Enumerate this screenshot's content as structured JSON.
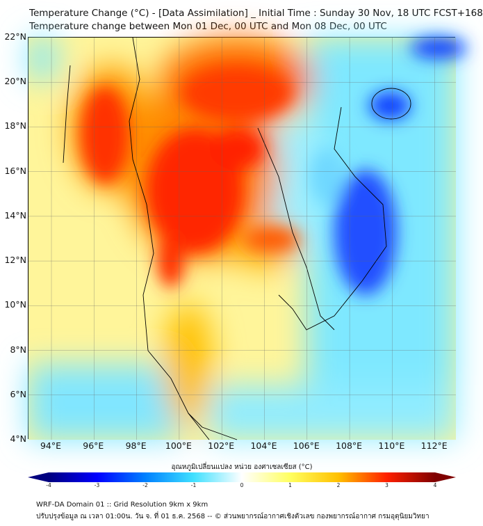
{
  "title": {
    "line1": "Temperature Change (°C) - [Data Assimilation] _ Initial Time : Sunday 30 Nov, 18 UTC FCST+168",
    "line2": "Temperature change between Mon 01 Dec, 00 UTC and Mon 08 Dec, 00 UTC"
  },
  "map": {
    "lat_labels": [
      "22°N",
      "20°N",
      "18°N",
      "16°N",
      "14°N",
      "12°N",
      "10°N",
      "8°N",
      "6°N",
      "4°N"
    ],
    "lon_labels": [
      "94°E",
      "96°E",
      "98°E",
      "100°E",
      "102°E",
      "104°E",
      "106°E",
      "108°E",
      "110°E",
      "112°E"
    ]
  },
  "colorbar": {
    "title": "อุณหภูมิเปลี่ยนแปลง หน่วย องศาเซลเซียส (°C)",
    "ticks": [
      "-4",
      "-3",
      "-2",
      "-1",
      "0",
      "1",
      "2",
      "3",
      "4"
    ],
    "colors": [
      "#00007f",
      "#0000ff",
      "#0080ff",
      "#40e0ff",
      "#ffffff",
      "#ffff60",
      "#ffc000",
      "#ff2000",
      "#7f0000"
    ]
  },
  "footer": {
    "line1": "WRF-DA Domain 01 :: Grid Resolution 9km x 9km",
    "line2": "ปรับปรุงข้อมูล ณ เวลา 01:00น. วัน จ. ที่ 01 ธ.ค. 2568 -- © ส่วนพยากรณ์อากาศเชิงตัวเลข กองพยากรณ์อากาศ กรมอุตุนิยมวิทยา"
  }
}
